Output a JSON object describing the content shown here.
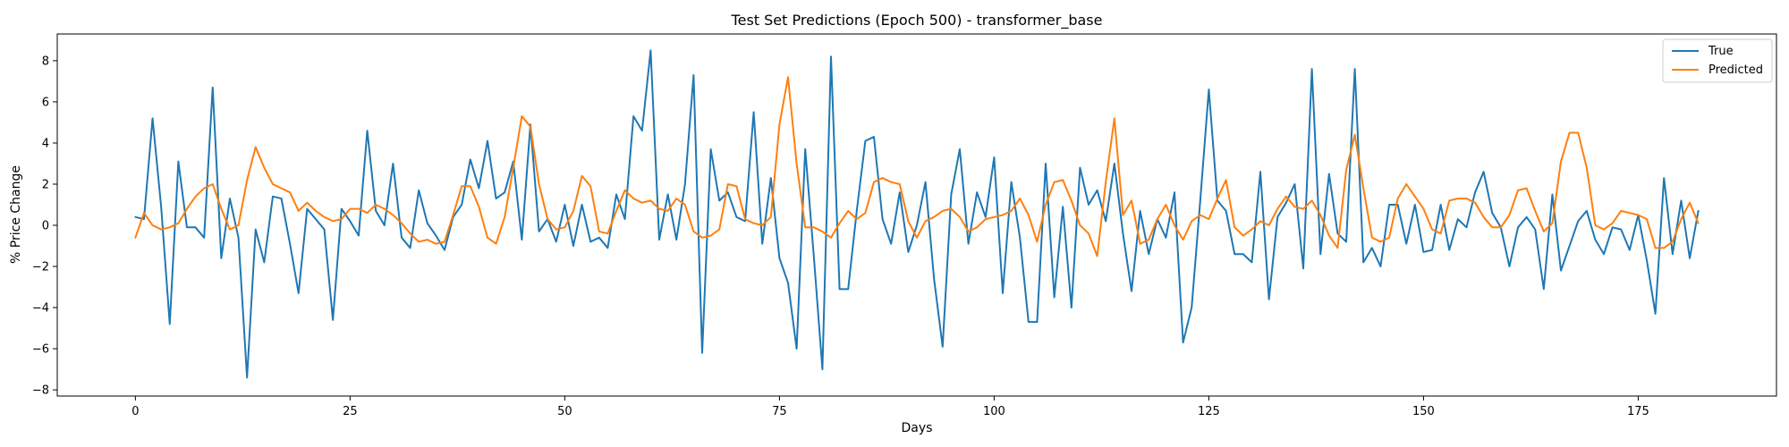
{
  "chart_data": {
    "type": "line",
    "title": "Test Set Predictions (Epoch 500) - transformer_base",
    "xlabel": "Days",
    "ylabel": "% Price Change",
    "xlim": [
      -9.1,
      191.1
    ],
    "ylim": [
      -8.3,
      9.3
    ],
    "xticks": [
      0,
      25,
      50,
      75,
      100,
      125,
      150,
      175
    ],
    "yticks": [
      -8,
      -6,
      -4,
      -2,
      0,
      2,
      4,
      6,
      8
    ],
    "grid": false,
    "legend_position": "top-right",
    "series": [
      {
        "name": "True",
        "color": "#1f77b4",
        "values": [
          0.4,
          0.3,
          5.2,
          0.9,
          -4.8,
          3.1,
          -0.1,
          -0.1,
          -0.6,
          6.7,
          -1.6,
          1.3,
          -0.6,
          -7.4,
          -0.2,
          -1.8,
          1.4,
          1.3,
          -0.9,
          -3.3,
          0.8,
          0.3,
          -0.2,
          -4.6,
          0.8,
          0.2,
          -0.5,
          4.6,
          0.7,
          0.0,
          3.0,
          -0.6,
          -1.1,
          1.7,
          0.1,
          -0.5,
          -1.2,
          0.4,
          1.0,
          3.2,
          1.8,
          4.1,
          1.3,
          1.6,
          3.1,
          -0.7,
          4.9,
          -0.3,
          0.3,
          -0.8,
          1.0,
          -1.0,
          1.0,
          -0.8,
          -0.6,
          -1.1,
          1.5,
          0.3,
          5.3,
          4.6,
          8.5,
          -0.7,
          1.5,
          -0.7,
          2.0,
          7.3,
          -6.2,
          3.7,
          1.2,
          1.6,
          0.4,
          0.2,
          5.5,
          -0.9,
          2.3,
          -1.6,
          -2.8,
          -6.0,
          3.7,
          -1.5,
          -7.0,
          8.2,
          -3.1,
          -3.1,
          0.7,
          4.1,
          4.3,
          0.3,
          -0.9,
          1.6,
          -1.3,
          0.0,
          2.1,
          -2.6,
          -5.9,
          1.5,
          3.7,
          -0.9,
          1.6,
          0.4,
          3.3,
          -3.3,
          2.1,
          -0.6,
          -4.7,
          -4.7,
          3.0,
          -3.5,
          0.9,
          -4.0,
          2.8,
          1.0,
          1.7,
          0.2,
          3.0,
          -0.4,
          -3.2,
          0.7,
          -1.4,
          0.3,
          -0.6,
          1.6,
          -5.7,
          -4.0,
          1.2,
          6.6,
          1.2,
          0.7,
          -1.4,
          -1.4,
          -1.8,
          2.6,
          -3.6,
          0.4,
          1.1,
          2.0,
          -2.1,
          7.6,
          -1.4,
          2.5,
          -0.4,
          -0.8,
          7.6,
          -1.8,
          -1.1,
          -2.0,
          1.0,
          1.0,
          -0.9,
          1.0,
          -1.3,
          -1.2,
          1.0,
          -1.2,
          0.3,
          -0.1,
          1.6,
          2.6,
          0.6,
          -0.1,
          -2.0,
          -0.1,
          0.4,
          -0.2,
          -3.1,
          1.5,
          -2.2,
          -1.0,
          0.2,
          0.7,
          -0.7,
          -1.4,
          -0.1,
          -0.2,
          -1.2,
          0.5,
          -1.7,
          -4.3,
          2.3,
          -1.4,
          1.2,
          -1.6,
          0.7
        ]
      },
      {
        "name": "Predicted",
        "color": "#ff7f0e",
        "values": [
          -0.6,
          0.6,
          0.0,
          -0.2,
          -0.1,
          0.1,
          0.8,
          1.4,
          1.8,
          2.0,
          0.8,
          -0.2,
          0.0,
          2.2,
          3.8,
          2.8,
          2.0,
          1.8,
          1.6,
          0.7,
          1.1,
          0.7,
          0.4,
          0.2,
          0.3,
          0.8,
          0.8,
          0.6,
          1.0,
          0.8,
          0.5,
          0.1,
          -0.4,
          -0.8,
          -0.7,
          -0.9,
          -0.8,
          0.5,
          1.9,
          1.9,
          0.9,
          -0.6,
          -0.9,
          0.4,
          2.8,
          5.3,
          4.8,
          2.0,
          0.3,
          -0.2,
          -0.1,
          0.7,
          2.4,
          1.9,
          -0.3,
          -0.4,
          0.7,
          1.7,
          1.3,
          1.1,
          1.2,
          0.8,
          0.7,
          1.3,
          1.0,
          -0.3,
          -0.6,
          -0.5,
          -0.2,
          2.0,
          1.9,
          0.3,
          0.1,
          0.0,
          0.4,
          4.9,
          7.2,
          3.0,
          -0.1,
          -0.1,
          -0.3,
          -0.6,
          0.1,
          0.7,
          0.3,
          0.6,
          2.1,
          2.3,
          2.1,
          2.0,
          0.2,
          -0.6,
          0.2,
          0.4,
          0.7,
          0.8,
          0.4,
          -0.3,
          -0.1,
          0.3,
          0.4,
          0.5,
          0.7,
          1.3,
          0.5,
          -0.8,
          1.0,
          2.1,
          2.2,
          1.2,
          0.0,
          -0.4,
          -1.5,
          2.1,
          5.2,
          0.5,
          1.2,
          -0.9,
          -0.7,
          0.3,
          1.0,
          0.0,
          -0.7,
          0.2,
          0.5,
          0.3,
          1.3,
          2.2,
          -0.1,
          -0.5,
          -0.2,
          0.2,
          0.0,
          0.8,
          1.4,
          0.9,
          0.8,
          1.2,
          0.5,
          -0.5,
          -1.1,
          2.7,
          4.4,
          1.8,
          -0.6,
          -0.8,
          -0.6,
          1.3,
          2.0,
          1.4,
          0.8,
          -0.2,
          -0.4,
          1.2,
          1.3,
          1.3,
          1.1,
          0.4,
          -0.1,
          -0.1,
          0.5,
          1.7,
          1.8,
          0.7,
          -0.3,
          0.1,
          3.1,
          4.5,
          4.5,
          2.8,
          0.0,
          -0.2,
          0.1,
          0.7,
          0.6,
          0.5,
          0.3,
          -1.1,
          -1.1,
          -0.8,
          0.3,
          1.1,
          0.1
        ]
      }
    ]
  }
}
